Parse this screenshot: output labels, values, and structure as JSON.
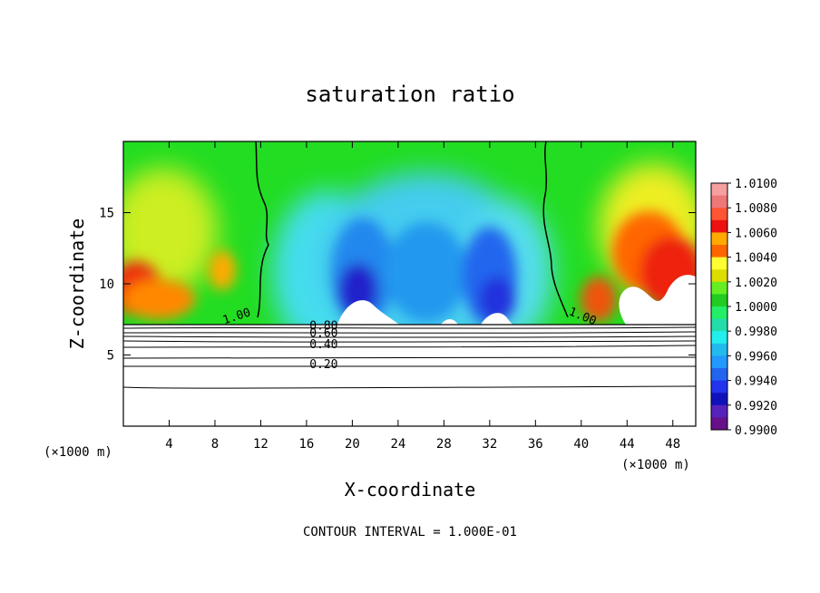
{
  "chart_data": {
    "type": "heatmap",
    "title": "saturation ratio",
    "xlabel": "X-coordinate",
    "ylabel": "Z-coordinate",
    "x_unit": "(×1000 m)",
    "x_unit_right": "(×1000 m)",
    "xlim": [
      0,
      50
    ],
    "ylim": [
      0,
      20
    ],
    "x_ticks": [
      "4",
      "8",
      "12",
      "16",
      "20",
      "24",
      "28",
      "32",
      "36",
      "40",
      "44",
      "48"
    ],
    "y_ticks": [
      "5",
      "10",
      "15"
    ],
    "note": "CONTOUR INTERVAL = 1.000E-01",
    "colorbar": {
      "labels": [
        "1.0100",
        "1.0080",
        "1.0060",
        "1.0040",
        "1.0020",
        "1.0000",
        "0.9980",
        "0.9960",
        "0.9940",
        "0.9920",
        "0.9900"
      ],
      "range": [
        0.99,
        1.01
      ]
    },
    "contour_labels": [
      {
        "text": "1.00",
        "x": 10,
        "z": 7.6
      },
      {
        "text": "1.00",
        "x": 40,
        "z": 7.6
      },
      {
        "text": "0.80",
        "x": 17.5,
        "z": 6.9
      },
      {
        "text": "0.60",
        "x": 17.5,
        "z": 6.4
      },
      {
        "text": "0.40",
        "x": 17.5,
        "z": 5.6
      },
      {
        "text": "0.20",
        "x": 17.5,
        "z": 4.2
      }
    ],
    "contours_z": [
      7.3,
      7.0,
      6.6,
      6.2,
      5.8,
      5.4,
      4.8,
      4.3,
      2.8
    ],
    "contour_1_x_range": [
      [
        11,
        12.2
      ],
      [
        36.5,
        39.5
      ]
    ],
    "field_description_values": {
      "top_left_z_max": 20,
      "cloud_base_z": 7.3
    }
  }
}
